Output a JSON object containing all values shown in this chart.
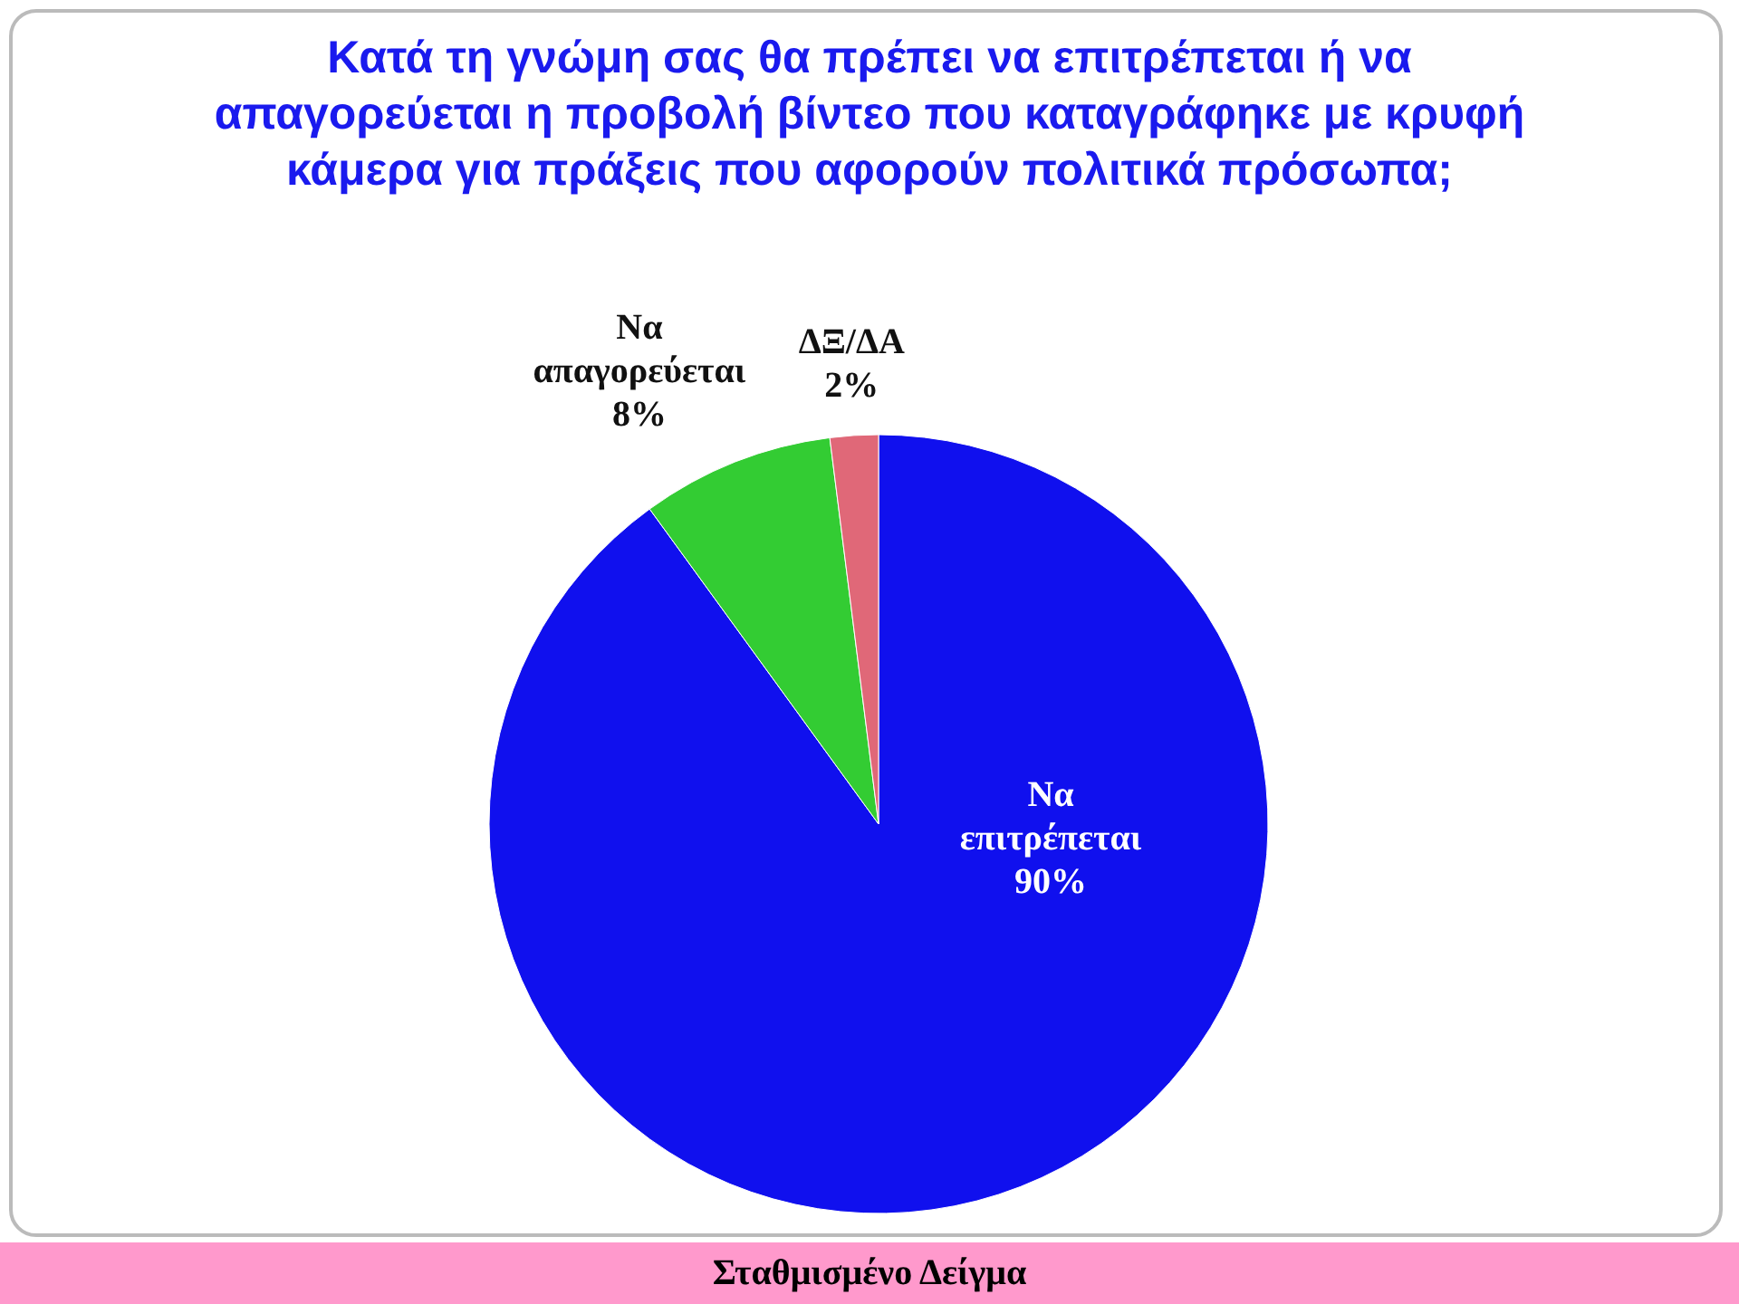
{
  "chart_data": {
    "type": "pie",
    "title": "Κατά τη γνώμη σας θα πρέπει να επιτρέπεται ή να απαγορεύεται η προβολή βίντεο που καταγράφηκε με κρυφή κάμερα για πράξεις που αφορούν πολιτικά πρόσωπα;",
    "categories": [
      "Να επιτρέπεται",
      "Να απαγορεύεται",
      "ΔΞ/ΔΑ"
    ],
    "values": [
      90,
      8,
      2
    ],
    "colors": [
      "#1010ee",
      "#33cc33",
      "#e06878"
    ],
    "value_labels": [
      "90%",
      "8%",
      "2%"
    ],
    "annotations": [
      "Σταθμισμένο Δείγμα"
    ]
  }
}
